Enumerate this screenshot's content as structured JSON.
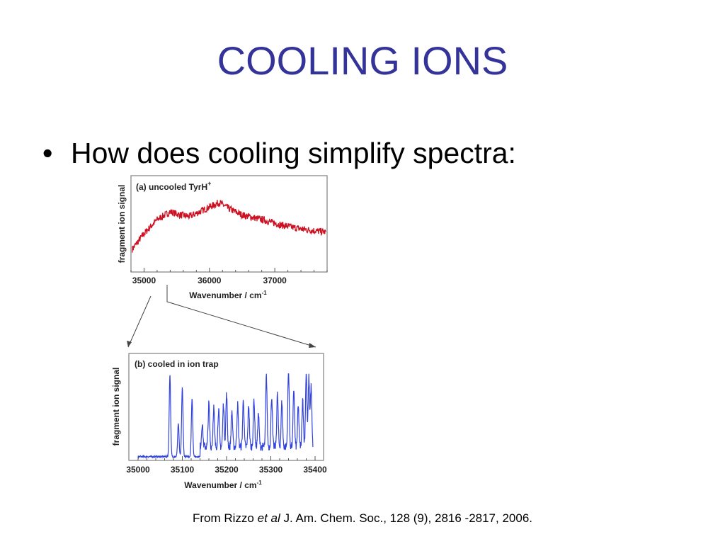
{
  "slide": {
    "title": "COOLING IONS",
    "bullet_symbol": "•",
    "bullet_text": "How does cooling simplify spectra:"
  },
  "citation": {
    "prefix": "From Rizzo ",
    "italic": "et al",
    "suffix": " J. Am. Chem. Soc., 128 (9), 2816 -2817, 2006."
  },
  "colors": {
    "title": "#33339a",
    "uncooled_trace": "#cc1122",
    "cooled_trace": "#3344dd",
    "frame": "#888888"
  },
  "chart_data": [
    {
      "type": "line",
      "panel_label": "(a) uncooled TyrH",
      "panel_label_superscript": "+",
      "ylabel": "fragment ion signal",
      "xlabel": "Wavenumber / cm",
      "xlabel_superscript": "-1",
      "xlim": [
        34800,
        37800
      ],
      "ylim": [
        0,
        1
      ],
      "xticks": [
        35000,
        36000,
        37000
      ],
      "x": [
        34820,
        35000,
        35200,
        35400,
        35550,
        35700,
        35850,
        36000,
        36150,
        36300,
        36500,
        36800,
        37100,
        37400,
        37780
      ],
      "y": [
        0.22,
        0.42,
        0.6,
        0.7,
        0.66,
        0.64,
        0.7,
        0.76,
        0.82,
        0.74,
        0.66,
        0.6,
        0.53,
        0.48,
        0.44
      ]
    },
    {
      "type": "line",
      "panel_label": "(b) cooled in ion trap",
      "ylabel": "fragment ion signal",
      "xlabel": "Wavenumber / cm",
      "xlabel_superscript": "-1",
      "xlim": [
        35000,
        35400
      ],
      "ylim": [
        0,
        1
      ],
      "xticks": [
        35000,
        35100,
        35200,
        35300,
        35400
      ],
      "peaks": [
        {
          "x": 35072,
          "h": 0.99
        },
        {
          "x": 35091,
          "h": 0.4
        },
        {
          "x": 35100,
          "h": 0.83
        },
        {
          "x": 35122,
          "h": 0.7
        },
        {
          "x": 35145,
          "h": 0.28
        },
        {
          "x": 35160,
          "h": 0.52
        },
        {
          "x": 35171,
          "h": 0.48
        },
        {
          "x": 35182,
          "h": 0.45
        },
        {
          "x": 35193,
          "h": 0.52
        },
        {
          "x": 35200,
          "h": 0.63
        },
        {
          "x": 35212,
          "h": 0.43
        },
        {
          "x": 35225,
          "h": 0.51
        },
        {
          "x": 35238,
          "h": 0.57
        },
        {
          "x": 35250,
          "h": 0.5
        },
        {
          "x": 35262,
          "h": 0.57
        },
        {
          "x": 35272,
          "h": 0.4
        },
        {
          "x": 35290,
          "h": 0.86
        },
        {
          "x": 35302,
          "h": 0.61
        },
        {
          "x": 35315,
          "h": 0.63
        },
        {
          "x": 35325,
          "h": 0.55
        },
        {
          "x": 35340,
          "h": 0.95
        },
        {
          "x": 35352,
          "h": 0.7
        },
        {
          "x": 35362,
          "h": 0.48
        },
        {
          "x": 35372,
          "h": 0.58
        },
        {
          "x": 35380,
          "h": 0.88
        },
        {
          "x": 35386,
          "h": 0.83
        },
        {
          "x": 35391,
          "h": 0.72
        }
      ]
    }
  ]
}
